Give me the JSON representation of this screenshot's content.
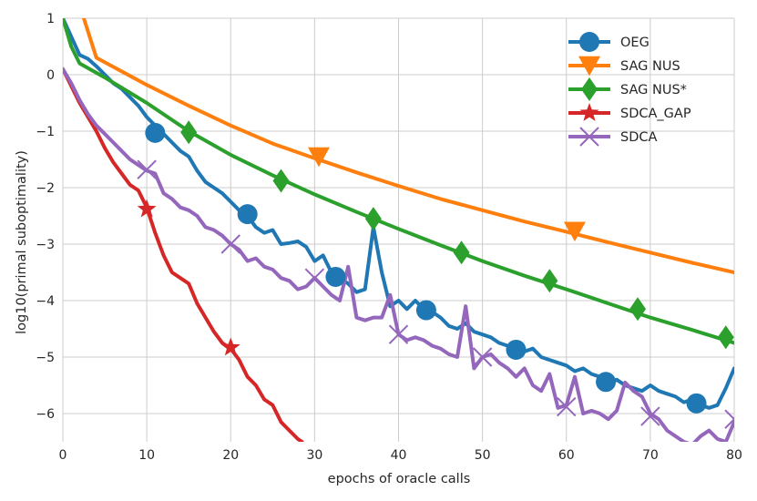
{
  "chart_data": {
    "type": "line",
    "title": "",
    "xlabel": "epochs of oracle calls",
    "ylabel": "log10(primal suboptimality)",
    "xlim": [
      0,
      80
    ],
    "ylim": [
      -6.5,
      1
    ],
    "xticks": [
      0,
      10,
      20,
      30,
      40,
      50,
      60,
      70,
      80
    ],
    "yticks": [
      1,
      0,
      -1,
      -2,
      -3,
      -4,
      -5,
      -6
    ],
    "ytick_labels": [
      "1",
      "0",
      "−1",
      "−2",
      "−3",
      "−4",
      "−5",
      "−6"
    ],
    "grid": true,
    "legend_position": "top-right",
    "series": [
      {
        "name": "OEG",
        "color": "#1f77b4",
        "marker": "circle",
        "x": [
          0,
          2,
          3,
          4,
          5,
          6,
          7,
          8,
          9,
          10,
          11,
          12,
          13,
          14,
          15,
          16,
          17,
          18,
          19,
          20,
          21,
          22,
          23,
          24,
          25,
          26,
          27,
          28,
          29,
          30,
          31,
          32,
          33,
          34,
          35,
          36,
          37,
          38,
          39,
          40,
          41,
          42,
          43,
          44,
          45,
          46,
          47,
          48,
          49,
          50,
          51,
          52,
          53,
          54,
          55,
          56,
          57,
          58,
          59,
          60,
          61,
          62,
          63,
          64,
          65,
          66,
          67,
          68,
          69,
          70,
          71,
          72,
          73,
          74,
          75,
          76,
          77,
          78,
          79,
          80
        ],
        "y": [
          1.0,
          0.35,
          0.28,
          0.15,
          0.0,
          -0.15,
          -0.25,
          -0.4,
          -0.55,
          -0.75,
          -0.9,
          -1.05,
          -1.2,
          -1.35,
          -1.45,
          -1.7,
          -1.9,
          -2.0,
          -2.1,
          -2.25,
          -2.4,
          -2.5,
          -2.7,
          -2.8,
          -2.75,
          -3.0,
          -2.98,
          -2.95,
          -3.05,
          -3.3,
          -3.2,
          -3.5,
          -3.6,
          -3.7,
          -3.85,
          -3.8,
          -2.7,
          -3.5,
          -4.1,
          -4.0,
          -4.15,
          -4.0,
          -4.15,
          -4.2,
          -4.3,
          -4.45,
          -4.5,
          -4.4,
          -4.55,
          -4.6,
          -4.65,
          -4.75,
          -4.8,
          -4.85,
          -4.9,
          -4.85,
          -5.0,
          -5.05,
          -5.1,
          -5.15,
          -5.25,
          -5.2,
          -5.3,
          -5.35,
          -5.45,
          -5.4,
          -5.5,
          -5.55,
          -5.6,
          -5.5,
          -5.6,
          -5.65,
          -5.7,
          -5.8,
          -5.75,
          -5.85,
          -5.9,
          -5.85,
          -5.55,
          -5.2
        ],
        "markers_x": [
          11,
          22,
          32.5,
          43.3,
          54,
          64.7,
          75.5
        ],
        "markers_y": [
          -1.03,
          -2.47,
          -3.58,
          -4.17,
          -4.87,
          -5.44,
          -5.82
        ]
      },
      {
        "name": "SAG NUS",
        "color": "#ff7f0e",
        "marker": "triangle-down",
        "x": [
          2.5,
          4,
          10,
          15,
          20,
          25,
          30,
          35,
          40,
          45,
          50,
          55,
          60,
          65,
          70,
          75,
          80
        ],
        "y": [
          1.0,
          0.3,
          -0.18,
          -0.55,
          -0.9,
          -1.22,
          -1.48,
          -1.73,
          -1.97,
          -2.2,
          -2.4,
          -2.6,
          -2.78,
          -2.97,
          -3.15,
          -3.33,
          -3.5
        ],
        "markers_x": [
          30.5,
          61
        ],
        "markers_y": [
          -1.45,
          -2.77
        ]
      },
      {
        "name": "SAG NUS*",
        "color": "#2ca02c",
        "marker": "diamond",
        "x": [
          0,
          1,
          2,
          5,
          10,
          15,
          20,
          25,
          30,
          35,
          40,
          45,
          50,
          55,
          60,
          65,
          70,
          75,
          80
        ],
        "y": [
          1.0,
          0.5,
          0.2,
          -0.05,
          -0.5,
          -1.0,
          -1.42,
          -1.78,
          -2.12,
          -2.43,
          -2.73,
          -3.02,
          -3.3,
          -3.56,
          -3.8,
          -4.05,
          -4.3,
          -4.52,
          -4.75
        ],
        "markers_x": [
          15,
          26,
          37,
          47.5,
          58,
          68.5,
          79
        ],
        "markers_y": [
          -1.02,
          -1.88,
          -2.55,
          -3.15,
          -3.65,
          -4.15,
          -4.65
        ]
      },
      {
        "name": "SDCA_GAP",
        "color": "#d62728",
        "marker": "star",
        "x": [
          0,
          1,
          2,
          3,
          4,
          5,
          6,
          7,
          8,
          9,
          10,
          11,
          12,
          13,
          14,
          15,
          16,
          17,
          18,
          19,
          20,
          21,
          22,
          23,
          24,
          25,
          26,
          27,
          28,
          28.5
        ],
        "y": [
          0.1,
          -0.2,
          -0.5,
          -0.75,
          -1.0,
          -1.3,
          -1.55,
          -1.75,
          -1.95,
          -2.05,
          -2.35,
          -2.8,
          -3.2,
          -3.5,
          -3.6,
          -3.7,
          -4.05,
          -4.3,
          -4.55,
          -4.75,
          -4.85,
          -5.05,
          -5.35,
          -5.5,
          -5.75,
          -5.85,
          -6.15,
          -6.3,
          -6.45,
          -6.5
        ],
        "markers_x": [
          10,
          20
        ],
        "markers_y": [
          -2.38,
          -4.83
        ]
      },
      {
        "name": "SDCA",
        "color": "#9467bd",
        "marker": "x",
        "x": [
          0,
          1,
          2,
          3,
          4,
          5,
          6,
          7,
          8,
          9,
          10,
          11,
          12,
          13,
          14,
          15,
          16,
          17,
          18,
          19,
          20,
          21,
          22,
          23,
          24,
          25,
          26,
          27,
          28,
          29,
          30,
          31,
          32,
          33,
          34,
          35,
          36,
          37,
          38,
          39,
          40,
          41,
          42,
          43,
          44,
          45,
          46,
          47,
          48,
          49,
          50,
          51,
          52,
          53,
          54,
          55,
          56,
          57,
          58,
          59,
          60,
          61,
          62,
          63,
          64,
          65,
          66,
          67,
          68,
          69,
          70,
          71,
          72,
          73,
          74,
          75,
          76,
          77,
          78,
          79,
          80
        ],
        "y": [
          0.1,
          -0.15,
          -0.45,
          -0.7,
          -0.9,
          -1.05,
          -1.2,
          -1.35,
          -1.5,
          -1.6,
          -1.7,
          -1.75,
          -2.1,
          -2.2,
          -2.35,
          -2.4,
          -2.5,
          -2.7,
          -2.75,
          -2.85,
          -3.0,
          -3.1,
          -3.3,
          -3.25,
          -3.4,
          -3.45,
          -3.6,
          -3.65,
          -3.8,
          -3.75,
          -3.6,
          -3.75,
          -3.9,
          -4.0,
          -3.4,
          -4.3,
          -4.35,
          -4.3,
          -4.3,
          -3.9,
          -4.6,
          -4.7,
          -4.65,
          -4.7,
          -4.8,
          -4.85,
          -4.95,
          -5.0,
          -4.1,
          -5.2,
          -5.0,
          -4.95,
          -5.1,
          -5.2,
          -5.35,
          -5.2,
          -5.5,
          -5.6,
          -5.3,
          -5.9,
          -5.85,
          -5.35,
          -6.0,
          -5.95,
          -6.0,
          -6.1,
          -5.95,
          -5.45,
          -5.6,
          -5.7,
          -6.0,
          -6.1,
          -6.3,
          -6.4,
          -6.5,
          -6.55,
          -6.4,
          -6.3,
          -6.45,
          -6.5,
          -6.15
        ],
        "markers_x": [
          10,
          20,
          30,
          40,
          50,
          60,
          70,
          80
        ],
        "markers_y": [
          -1.68,
          -3.0,
          -3.6,
          -4.6,
          -5.0,
          -5.88,
          -6.05,
          -6.1
        ]
      }
    ]
  }
}
